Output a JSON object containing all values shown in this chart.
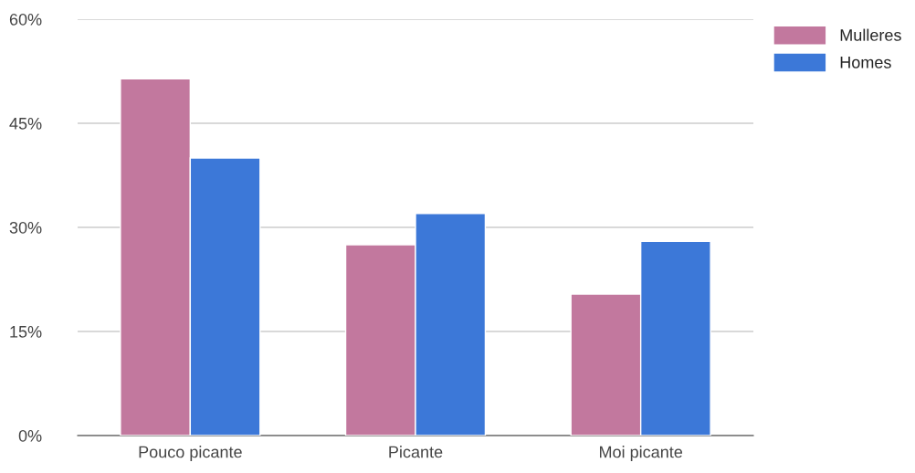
{
  "chart_data": {
    "type": "bar",
    "categories": [
      "Pouco picante",
      "Picante",
      "Moi picante"
    ],
    "series": [
      {
        "name": "Mulleres",
        "color": "#c2789e",
        "values": [
          51.4,
          27.5,
          20.4
        ]
      },
      {
        "name": "Homes",
        "color": "#3c78d8",
        "values": [
          40,
          32,
          28
        ]
      }
    ],
    "ylim": [
      0,
      60
    ],
    "yticks": [
      {
        "value": 0,
        "label": "0%"
      },
      {
        "value": 15,
        "label": "15%"
      },
      {
        "value": 30,
        "label": "30%"
      },
      {
        "value": 45,
        "label": "45%"
      },
      {
        "value": 60,
        "label": "60%"
      }
    ],
    "grid": "y",
    "legend": "top right"
  }
}
